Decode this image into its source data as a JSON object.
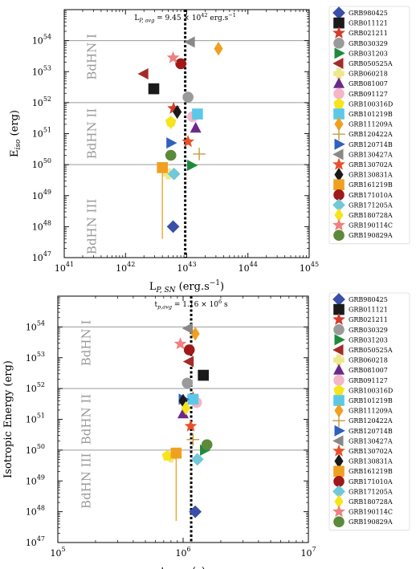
{
  "chart_data": [
    {
      "type": "scatter",
      "xscale": "log",
      "yscale": "log",
      "xlim": [
        1e+41,
        1e+45
      ],
      "ylim": [
        1e+47,
        1e+55
      ],
      "xticks": [
        {
          "base": "10",
          "exp": "41"
        },
        {
          "base": "10",
          "exp": "42"
        },
        {
          "base": "10",
          "exp": "43"
        },
        {
          "base": "10",
          "exp": "44"
        },
        {
          "base": "10",
          "exp": "45"
        }
      ],
      "yticks": [
        {
          "base": "10",
          "exp": "47"
        },
        {
          "base": "10",
          "exp": "48"
        },
        {
          "base": "10",
          "exp": "49"
        },
        {
          "base": "10",
          "exp": "50"
        },
        {
          "base": "10",
          "exp": "51"
        },
        {
          "base": "10",
          "exp": "52"
        },
        {
          "base": "10",
          "exp": "53"
        },
        {
          "base": "10",
          "exp": "54"
        }
      ],
      "xlabel": "L",
      "xlabel_sub": "P, SN",
      "xlabel_unit": " (erg.s",
      "xlabel_unit_sup": "−1",
      "xlabel_unit_end": ")",
      "ylabel": "E",
      "ylabel_sub": "iso",
      "ylabel_unit": " (erg)",
      "vline": {
        "x": 9.45e+42,
        "label": "L",
        "label_sub": "P, avg",
        "label_value": " = 9.45 × 10",
        "label_sup": "42",
        "label_unit": " erg.s",
        "label_unit_sup": "−1"
      },
      "hlines": [
        1e+50,
        1e+52,
        1e+54
      ],
      "regions": [
        {
          "text": "BdHN I",
          "y": 3e+53
        },
        {
          "text": "BdHN II",
          "y": 1e+51
        },
        {
          "text": "BdHN III",
          "y": 1e+48
        }
      ],
      "legend_position": "outside-right",
      "series": [
        {
          "name": "GRB980425",
          "color": "#3a4fa8",
          "marker": "D",
          "x": 6e+42,
          "y": 1e+48
        },
        {
          "name": "GRB011121",
          "color": "#1a1a1a",
          "marker": "s",
          "x": 2.9e+42,
          "y": 2.8e+52
        },
        {
          "name": "GRB021211",
          "color": "#d43d2a",
          "marker": "*",
          "x": 6.1e+42,
          "y": 6.5e+51
        },
        {
          "name": "GRB030329",
          "color": "#9a9a9a",
          "marker": "o",
          "x": 1.05e+43,
          "y": 1.5e+52
        },
        {
          "name": "GRB031203",
          "color": "#1f8a3a",
          "marker": ">",
          "x": 1.2e+43,
          "y": 9.5e+49
        },
        {
          "name": "GRB050525A",
          "color": "#a52a2a",
          "marker": "<",
          "x": 2e+42,
          "y": 8.5e+52
        },
        {
          "name": "GRB060218",
          "color": "#f0e68c",
          "marker": "P",
          "x": 5e+42,
          "y": 5e+49
        },
        {
          "name": "GRB081007",
          "color": "#6a2a8a",
          "marker": "^",
          "x": 1.4e+43,
          "y": 1.5e+51
        },
        {
          "name": "GRB091127",
          "color": "#f4b6c8",
          "marker": "o",
          "x": 1.25e+43,
          "y": 3.5e+51
        },
        {
          "name": "GRB100316D",
          "color": "#f5e51a",
          "marker": "p",
          "x": 5.5e+42,
          "y": 2.4e+51
        },
        {
          "name": "GRB101219B",
          "color": "#5bc8e8",
          "marker": "s",
          "x": 1.5e+43,
          "y": 4.3e+51
        },
        {
          "name": "GRB111209A",
          "color": "#f0a020",
          "marker": "d",
          "x": 3.3e+43,
          "y": 5.5e+53
        },
        {
          "name": "GRB120422A",
          "color": "#c89a40",
          "marker": "+",
          "x": 1.6e+43,
          "y": 2.2e+50
        },
        {
          "name": "GRB120714B",
          "color": "#3060c0",
          "marker": ">",
          "x": 5.5e+42,
          "y": 5e+50
        },
        {
          "name": "GRB130427A",
          "color": "#888888",
          "marker": "<",
          "x": 1.15e+43,
          "y": 9e+53
        },
        {
          "name": "GRB130702A",
          "color": "#e8502a",
          "marker": "*",
          "x": 1.05e+43,
          "y": 5.5e+50
        },
        {
          "name": "GRB130831A",
          "color": "#1a1a1a",
          "marker": "d",
          "x": 7e+42,
          "y": 5e+51
        },
        {
          "name": "GRB161219B",
          "color": "#f0a020",
          "marker": "s",
          "x": 4e+42,
          "y": 8e+49,
          "yerr_low": 4e+47
        },
        {
          "name": "GRB171010A",
          "color": "#a01818",
          "marker": "o",
          "x": 8e+42,
          "y": 1.8e+53
        },
        {
          "name": "GRB171205A",
          "color": "#70c8d8",
          "marker": "D",
          "x": 6.2e+42,
          "y": 5e+49
        },
        {
          "name": "GRB180728A",
          "color": "#f5e51a",
          "marker": "d",
          "x": 5.5e+42,
          "y": 2.3e+51
        },
        {
          "name": "GRB190114C",
          "color": "#f08080",
          "marker": "*",
          "x": 6e+42,
          "y": 2.8e+53
        },
        {
          "name": "GRB190829A",
          "color": "#5a8a3a",
          "marker": "o",
          "x": 5.5e+42,
          "y": 2e+50
        }
      ]
    },
    {
      "type": "scatter",
      "xscale": "log",
      "yscale": "log",
      "xlim": [
        100000.0,
        10000000.0
      ],
      "ylim": [
        1e+47,
        1e+55
      ],
      "xticks": [
        {
          "base": "10",
          "exp": "5"
        },
        {
          "base": "10",
          "exp": "6"
        },
        {
          "base": "10",
          "exp": "7"
        }
      ],
      "yticks": [
        {
          "base": "10",
          "exp": "47"
        },
        {
          "base": "10",
          "exp": "48"
        },
        {
          "base": "10",
          "exp": "49"
        },
        {
          "base": "10",
          "exp": "50"
        },
        {
          "base": "10",
          "exp": "51"
        },
        {
          "base": "10",
          "exp": "52"
        },
        {
          "base": "10",
          "exp": "53"
        },
        {
          "base": "10",
          "exp": "54"
        }
      ],
      "xlabel": "t",
      "xlabel_sub": "p, rest",
      "xlabel_unit": " (s)",
      "ylabel": "Isotropic Energy (erg)",
      "vline": {
        "x": 1160000.0,
        "label": "t",
        "label_sub": "p,avg",
        "label_value": " = 1.16 × 10",
        "label_sup": "6",
        "label_unit": " s"
      },
      "hlines": [
        1e+50,
        1e+52,
        1e+54
      ],
      "regions": [
        {
          "text": "BdHN I",
          "y": 3e+53
        },
        {
          "text": "BdHN II",
          "y": 1e+51
        },
        {
          "text": "BdHN III",
          "y": 1e+49
        }
      ],
      "legend_position": "outside-right",
      "series": [
        {
          "name": "GRB980425",
          "color": "#3a4fa8",
          "marker": "D",
          "x": 1250000.0,
          "y": 1e+48
        },
        {
          "name": "GRB011121",
          "color": "#1a1a1a",
          "marker": "s",
          "x": 1450000.0,
          "y": 2.7e+52
        },
        {
          "name": "GRB021211",
          "color": "#d43d2a",
          "marker": "*",
          "x": 1200000.0,
          "y": 5e+51
        },
        {
          "name": "GRB030329",
          "color": "#9a9a9a",
          "marker": "o",
          "x": 1080000.0,
          "y": 1.5e+52
        },
        {
          "name": "GRB031203",
          "color": "#1f8a3a",
          "marker": ">",
          "x": 1480000.0,
          "y": 1e+50
        },
        {
          "name": "GRB050525A",
          "color": "#a52a2a",
          "marker": "<",
          "x": 1120000.0,
          "y": 7.5e+52
        },
        {
          "name": "GRB060218",
          "color": "#f0e68c",
          "marker": "P",
          "x": 800000.0,
          "y": 6e+49
        },
        {
          "name": "GRB081007",
          "color": "#6a2a8a",
          "marker": "^",
          "x": 1000000.0,
          "y": 1.5e+51
        },
        {
          "name": "GRB091127",
          "color": "#f4b6c8",
          "marker": "o",
          "x": 1280000.0,
          "y": 3.5e+51
        },
        {
          "name": "GRB100316D",
          "color": "#f5e51a",
          "marker": "p",
          "x": 750000.0,
          "y": 6.5e+49
        },
        {
          "name": "GRB101219B",
          "color": "#5bc8e8",
          "marker": "s",
          "x": 1200000.0,
          "y": 4.5e+51
        },
        {
          "name": "GRB111209A",
          "color": "#f0a020",
          "marker": "d",
          "x": 1250000.0,
          "y": 6e+53
        },
        {
          "name": "GRB120422A",
          "color": "#c89a40",
          "marker": "+",
          "x": 1200000.0,
          "y": 2.2e+50
        },
        {
          "name": "GRB120714B",
          "color": "#3060c0",
          "marker": ">",
          "x": 1000000.0,
          "y": 4.5e+51
        },
        {
          "name": "GRB130427A",
          "color": "#888888",
          "marker": "<",
          "x": 1100000.0,
          "y": 9e+53
        },
        {
          "name": "GRB130702A",
          "color": "#e8502a",
          "marker": "*",
          "x": 1150000.0,
          "y": 6e+50
        },
        {
          "name": "GRB130831A",
          "color": "#1a1a1a",
          "marker": "d",
          "x": 1000000.0,
          "y": 4e+51
        },
        {
          "name": "GRB161219B",
          "color": "#f0a020",
          "marker": "s",
          "x": 880000.0,
          "y": 8e+49,
          "yerr_low": 5e+47
        },
        {
          "name": "GRB171010A",
          "color": "#a01818",
          "marker": "o",
          "x": 1120000.0,
          "y": 1.8e+53
        },
        {
          "name": "GRB171205A",
          "color": "#70c8d8",
          "marker": "D",
          "x": 1300000.0,
          "y": 5e+49
        },
        {
          "name": "GRB180728A",
          "color": "#f5e51a",
          "marker": "d",
          "x": 1050000.0,
          "y": 2.3e+51
        },
        {
          "name": "GRB190114C",
          "color": "#f08080",
          "marker": "*",
          "x": 950000.0,
          "y": 2.8e+53
        },
        {
          "name": "GRB190829A",
          "color": "#5a8a3a",
          "marker": "o",
          "x": 1550000.0,
          "y": 1.5e+50
        }
      ]
    }
  ]
}
